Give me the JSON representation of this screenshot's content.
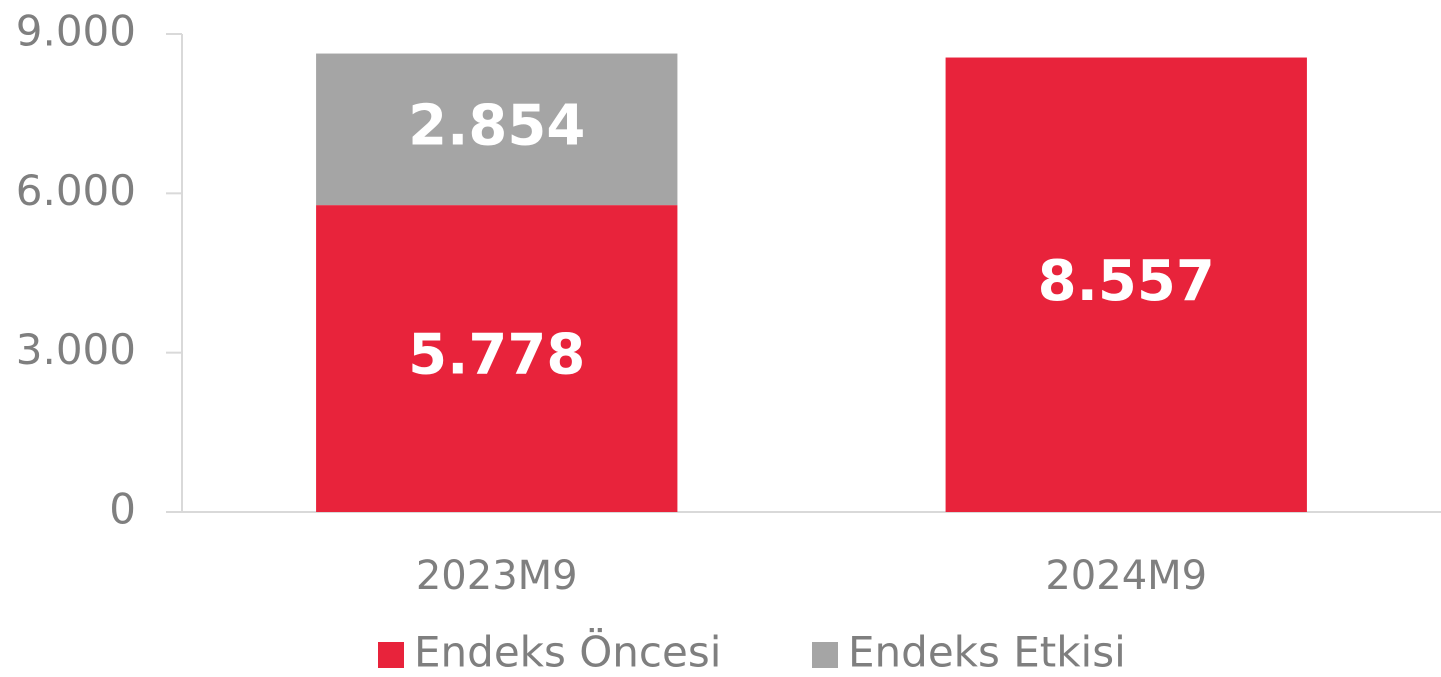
{
  "chart_data": {
    "type": "stacked_bar",
    "categories": [
      "2023M9",
      "2024M9"
    ],
    "series": [
      {
        "name": "Endeks Öncesi",
        "color": "#e8233b",
        "values": [
          5778,
          8557
        ],
        "value_labels": [
          "5.778",
          "8.557"
        ]
      },
      {
        "name": "Endeks Etkisi",
        "color": "#a5a5a5",
        "values": [
          2854,
          null
        ],
        "value_labels": [
          "2.854",
          null
        ]
      }
    ],
    "ylim": [
      0,
      9000
    ],
    "yticks": [
      0,
      {
        "value": 3000,
        "label": "3.000"
      },
      {
        "value": 6000,
        "label": "6.000"
      },
      {
        "value": 9000,
        "label": "9.000"
      }
    ],
    "grid": false,
    "legend": "bottom"
  }
}
